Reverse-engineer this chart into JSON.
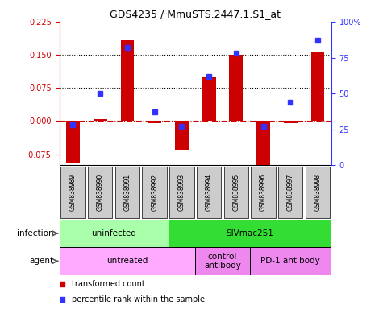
{
  "title": "GDS4235 / MmuSTS.2447.1.S1_at",
  "samples": [
    "GSM838989",
    "GSM838990",
    "GSM838991",
    "GSM838992",
    "GSM838993",
    "GSM838994",
    "GSM838995",
    "GSM838996",
    "GSM838997",
    "GSM838998"
  ],
  "transformed_count": [
    -0.095,
    0.005,
    0.183,
    -0.005,
    -0.065,
    0.1,
    0.15,
    -0.1,
    -0.005,
    0.155
  ],
  "percentile_rank": [
    0.28,
    0.5,
    0.82,
    0.37,
    0.27,
    0.62,
    0.78,
    0.27,
    0.44,
    0.87
  ],
  "ylim_left": [
    -0.1,
    0.225
  ],
  "yticks_left": [
    -0.075,
    0,
    0.075,
    0.15,
    0.225
  ],
  "yticks_right": [
    0,
    0.25,
    0.5,
    0.75,
    1.0
  ],
  "ytick_labels_right": [
    "0",
    "25",
    "50",
    "75",
    "100%"
  ],
  "hlines": [
    0.075,
    0.15
  ],
  "bar_color": "#cc0000",
  "dot_color": "#3333ff",
  "infection_groups": [
    {
      "label": "uninfected",
      "start": 0,
      "end": 4,
      "color": "#aaffaa"
    },
    {
      "label": "SIVmac251",
      "start": 4,
      "end": 10,
      "color": "#33dd33"
    }
  ],
  "agent_groups": [
    {
      "label": "untreated",
      "start": 0,
      "end": 5,
      "color": "#ffaaff"
    },
    {
      "label": "control\nantibody",
      "start": 5,
      "end": 7,
      "color": "#ee88ee"
    },
    {
      "label": "PD-1 antibody",
      "start": 7,
      "end": 10,
      "color": "#ee88ee"
    }
  ],
  "legend_items": [
    {
      "label": "transformed count",
      "color": "#cc0000"
    },
    {
      "label": "percentile rank within the sample",
      "color": "#3333ff"
    }
  ],
  "background_color": "#ffffff",
  "sample_box_color": "#cccccc",
  "label_infection": "infection",
  "label_agent": "agent"
}
